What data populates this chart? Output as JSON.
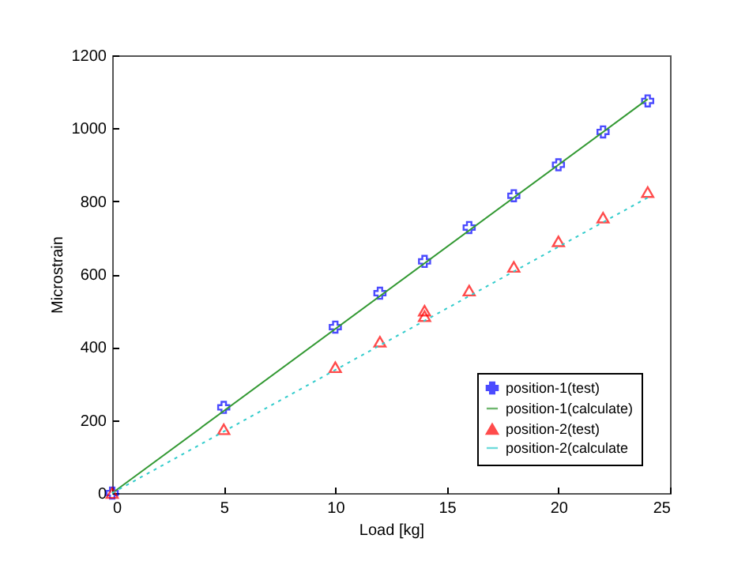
{
  "chart_data": {
    "type": "line",
    "xlabel": "Load [kg]",
    "ylabel": "Microstrain",
    "xlim": [
      0,
      25
    ],
    "ylim": [
      0,
      1200
    ],
    "xticks": [
      0,
      5,
      10,
      15,
      20,
      25
    ],
    "yticks": [
      0,
      200,
      400,
      600,
      800,
      1000,
      1200
    ],
    "grid": false,
    "legend": "bottom right",
    "series": [
      {
        "name": "position-1(test)",
        "type": "scatter",
        "marker": "cross",
        "color": "#0000ff",
        "x": [
          0,
          5,
          10,
          12,
          14,
          16,
          18,
          20,
          22,
          24
        ],
        "values": [
          0,
          235,
          455,
          548,
          635,
          728,
          815,
          900,
          990,
          1075
        ]
      },
      {
        "name": "position-1(calculate)",
        "marker": "none",
        "line_style": "solid",
        "color": "#339933",
        "x": [
          0,
          24
        ],
        "values": [
          0,
          1080
        ]
      },
      {
        "name": "position-2(test)",
        "type": "scatter",
        "marker": "triangle",
        "color": "#ff0000",
        "x": [
          0,
          5,
          10,
          12,
          14,
          14,
          16,
          18,
          20,
          22,
          24
        ],
        "values": [
          0,
          175,
          345,
          415,
          500,
          485,
          555,
          620,
          690,
          755,
          825
        ]
      },
      {
        "name": "position-2(calculate",
        "marker": "none",
        "line_style": "dotted",
        "color": "#33cccc",
        "x": [
          0,
          24
        ],
        "values": [
          0,
          810
        ]
      }
    ]
  }
}
